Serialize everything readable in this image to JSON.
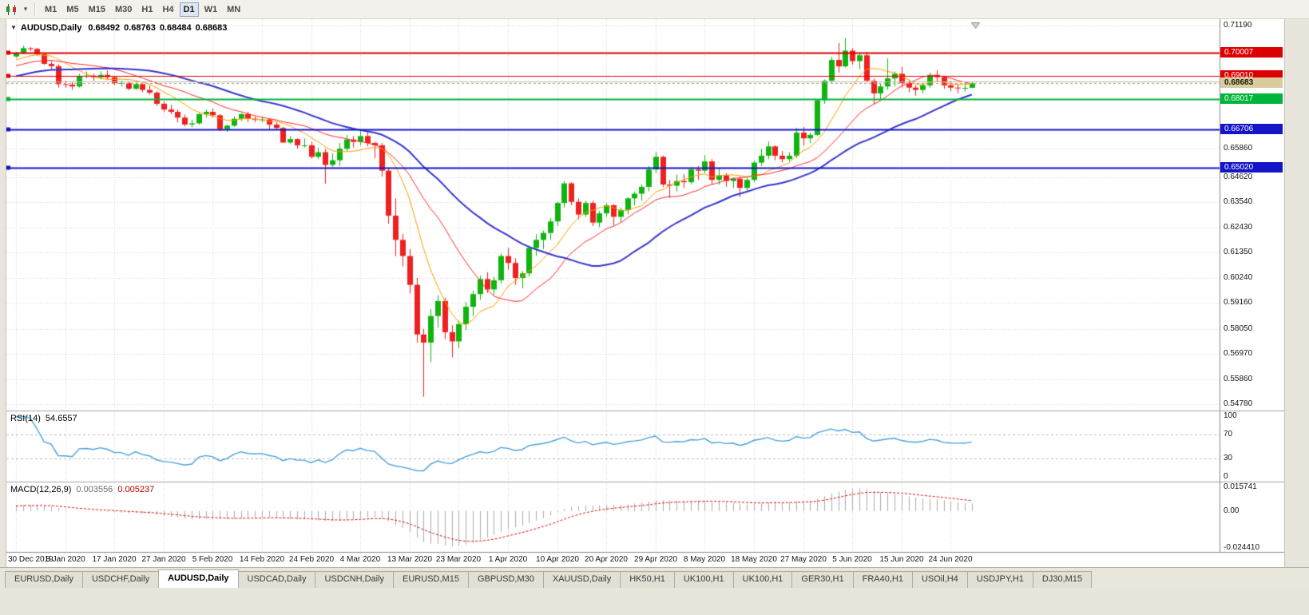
{
  "toolbar": {
    "timeframes": [
      "M1",
      "M5",
      "M15",
      "M30",
      "H1",
      "H4",
      "D1",
      "W1",
      "MN"
    ],
    "active_timeframe": "D1"
  },
  "ohlc": {
    "symbol": "AUDUSD,Daily",
    "open": "0.68492",
    "high": "0.68763",
    "low": "0.68484",
    "close": "0.68683"
  },
  "indicators": {
    "rsi": {
      "name": "RSI(14)",
      "value": "54.6557",
      "period": 14,
      "ticks": [
        {
          "label": "100",
          "value": 100
        },
        {
          "label": "70",
          "value": 70
        },
        {
          "label": "30",
          "value": 30
        },
        {
          "label": "0",
          "value": 0
        }
      ],
      "dashed_levels": [
        70,
        30
      ],
      "line_color": "#4aa1dc"
    },
    "macd": {
      "name": "MACD(12,26,9)",
      "value_main": "0.003556",
      "value_signal": "0.005237",
      "fast": 12,
      "slow": 26,
      "signal": 9,
      "axis_max": 0.015741,
      "axis_min": -0.02441,
      "ticks": [
        {
          "label": "0.015741",
          "value": 0.015741
        },
        {
          "label": "0.00",
          "value": 0
        },
        {
          "label": "-0.024410",
          "value": -0.02441
        }
      ],
      "histogram_color": "#ababab",
      "signal_color": "#e01010"
    }
  },
  "chart_data": {
    "type": "candlestick",
    "symbol": "AUDUSD",
    "timeframe": "Daily",
    "up_color": "#0fb40f",
    "down_color": "#ef2020",
    "price_axis": {
      "min": 0.5478,
      "max": 0.7119,
      "ticks": [
        0.7119,
        0.6586,
        0.6462,
        0.6354,
        0.6243,
        0.6135,
        0.6024,
        0.5916,
        0.5805,
        0.5697,
        0.5586,
        0.5478
      ]
    },
    "x_labels": [
      "30 Dec 2019",
      "8 Jan 2020",
      "17 Jan 2020",
      "27 Jan 2020",
      "5 Feb 2020",
      "14 Feb 2020",
      "24 Feb 2020",
      "4 Mar 2020",
      "13 Mar 2020",
      "23 Mar 2020",
      "1 Apr 2020",
      "10 Apr 2020",
      "20 Apr 2020",
      "29 Apr 2020",
      "8 May 2020",
      "18 May 2020",
      "27 May 2020",
      "5 Jun 2020",
      "15 Jun 2020",
      "24 Jun 2020"
    ],
    "label_step": 7,
    "moving_averages": [
      {
        "name": "ma-fast",
        "period": 8,
        "color": "#ff9c00",
        "width": 1
      },
      {
        "name": "ma-medium",
        "period": 16,
        "color": "#ff2828",
        "width": 1
      },
      {
        "name": "ma-slow",
        "period": 30,
        "color": "#3535cf",
        "width": 2
      }
    ],
    "hlines": [
      {
        "price": 0.70007,
        "label": "0.70007",
        "color": "#dd0000",
        "width": 2
      },
      {
        "price": 0.6901,
        "label": "0.69010",
        "color": "#dd0000",
        "width": 1
      },
      {
        "price": 0.6878,
        "label": "",
        "color": "#bcbcbc",
        "width": 1
      },
      {
        "price": 0.68017,
        "label": "0.68017",
        "color": "#00b43c",
        "width": 2
      },
      {
        "price": 0.66706,
        "label": "0.66706",
        "color": "#1414c8",
        "width": 2
      },
      {
        "price": 0.6502,
        "label": "0.65020",
        "color": "#1414c8",
        "width": 2
      }
    ],
    "current_price": {
      "value": 0.68683,
      "label": "0.68683",
      "badge_bg": "#d9cd9f",
      "badge_fg": "#1a1a00"
    },
    "candles": [
      [
        0.6985,
        0.7005,
        0.6979,
        0.7
      ],
      [
        0.7,
        0.7032,
        0.6996,
        0.7021
      ],
      [
        0.7021,
        0.7026,
        0.7008,
        0.7018
      ],
      [
        0.7018,
        0.7022,
        0.6989,
        0.6995
      ],
      [
        0.6995,
        0.7,
        0.6948,
        0.6953
      ],
      [
        0.6953,
        0.6965,
        0.6925,
        0.6943
      ],
      [
        0.6943,
        0.695,
        0.685,
        0.6865
      ],
      [
        0.6865,
        0.688,
        0.6849,
        0.6863
      ],
      [
        0.6863,
        0.6875,
        0.684,
        0.6855
      ],
      [
        0.6855,
        0.691,
        0.685,
        0.69
      ],
      [
        0.69,
        0.692,
        0.689,
        0.6902
      ],
      [
        0.6902,
        0.691,
        0.688,
        0.6895
      ],
      [
        0.6895,
        0.692,
        0.6885,
        0.6905
      ],
      [
        0.6905,
        0.6925,
        0.6885,
        0.6895
      ],
      [
        0.6895,
        0.69,
        0.686,
        0.687
      ],
      [
        0.687,
        0.688,
        0.6855,
        0.687
      ],
      [
        0.687,
        0.6878,
        0.6838,
        0.6845
      ],
      [
        0.6845,
        0.688,
        0.684,
        0.6865
      ],
      [
        0.6865,
        0.687,
        0.683,
        0.684
      ],
      [
        0.684,
        0.686,
        0.682,
        0.6828
      ],
      [
        0.6828,
        0.6835,
        0.677,
        0.678
      ],
      [
        0.678,
        0.679,
        0.6744,
        0.6755
      ],
      [
        0.6755,
        0.6775,
        0.6735,
        0.6745
      ],
      [
        0.6745,
        0.6755,
        0.67,
        0.672
      ],
      [
        0.672,
        0.6733,
        0.6682,
        0.669
      ],
      [
        0.669,
        0.671,
        0.6678,
        0.6695
      ],
      [
        0.6695,
        0.674,
        0.669,
        0.6735
      ],
      [
        0.6735,
        0.6755,
        0.672,
        0.6745
      ],
      [
        0.6745,
        0.676,
        0.672,
        0.673
      ],
      [
        0.673,
        0.6735,
        0.6662,
        0.667
      ],
      [
        0.667,
        0.669,
        0.6658,
        0.6685
      ],
      [
        0.6685,
        0.6725,
        0.668,
        0.6715
      ],
      [
        0.6715,
        0.674,
        0.6705,
        0.6735
      ],
      [
        0.6735,
        0.6745,
        0.67,
        0.6715
      ],
      [
        0.6715,
        0.6725,
        0.67,
        0.671
      ],
      [
        0.671,
        0.6725,
        0.67,
        0.6712
      ],
      [
        0.6712,
        0.6715,
        0.6665,
        0.669
      ],
      [
        0.669,
        0.67,
        0.6665,
        0.6675
      ],
      [
        0.6675,
        0.668,
        0.661,
        0.6612
      ],
      [
        0.6612,
        0.664,
        0.6605,
        0.6627
      ],
      [
        0.6627,
        0.663,
        0.6585,
        0.66
      ],
      [
        0.66,
        0.663,
        0.659,
        0.66
      ],
      [
        0.66,
        0.6615,
        0.6542,
        0.655
      ],
      [
        0.655,
        0.659,
        0.654,
        0.657
      ],
      [
        0.657,
        0.6585,
        0.6433,
        0.6515
      ],
      [
        0.6515,
        0.6565,
        0.6505,
        0.6535
      ],
      [
        0.6535,
        0.661,
        0.651,
        0.6585
      ],
      [
        0.6585,
        0.6645,
        0.6575,
        0.6625
      ],
      [
        0.6625,
        0.664,
        0.659,
        0.6615
      ],
      [
        0.6615,
        0.667,
        0.66,
        0.664
      ],
      [
        0.664,
        0.666,
        0.6595,
        0.661
      ],
      [
        0.661,
        0.6615,
        0.6545,
        0.66
      ],
      [
        0.66,
        0.661,
        0.6465,
        0.649
      ],
      [
        0.649,
        0.65,
        0.626,
        0.6295
      ],
      [
        0.6295,
        0.637,
        0.612,
        0.619
      ],
      [
        0.619,
        0.6215,
        0.6075,
        0.612
      ],
      [
        0.612,
        0.615,
        0.5958,
        0.5995
      ],
      [
        0.5995,
        0.6025,
        0.5745,
        0.578
      ],
      [
        0.578,
        0.5805,
        0.551,
        0.5745
      ],
      [
        0.5745,
        0.589,
        0.566,
        0.586
      ],
      [
        0.586,
        0.595,
        0.581,
        0.5925
      ],
      [
        0.5925,
        0.594,
        0.576,
        0.579
      ],
      [
        0.579,
        0.582,
        0.568,
        0.575
      ],
      [
        0.575,
        0.584,
        0.572,
        0.5825
      ],
      [
        0.5825,
        0.592,
        0.58,
        0.59
      ],
      [
        0.59,
        0.597,
        0.586,
        0.5955
      ],
      [
        0.5955,
        0.6035,
        0.593,
        0.602
      ],
      [
        0.602,
        0.605,
        0.596,
        0.5975
      ],
      [
        0.5975,
        0.603,
        0.595,
        0.6015
      ],
      [
        0.6015,
        0.613,
        0.6,
        0.612
      ],
      [
        0.612,
        0.6155,
        0.606,
        0.609
      ],
      [
        0.609,
        0.611,
        0.5995,
        0.6025
      ],
      [
        0.6025,
        0.6055,
        0.598,
        0.6045
      ],
      [
        0.6045,
        0.6165,
        0.603,
        0.6155
      ],
      [
        0.6155,
        0.6215,
        0.612,
        0.619
      ],
      [
        0.619,
        0.623,
        0.615,
        0.622
      ],
      [
        0.622,
        0.6285,
        0.619,
        0.627
      ],
      [
        0.627,
        0.6355,
        0.625,
        0.635
      ],
      [
        0.635,
        0.6445,
        0.633,
        0.6435
      ],
      [
        0.6435,
        0.644,
        0.634,
        0.6355
      ],
      [
        0.6355,
        0.637,
        0.628,
        0.63
      ],
      [
        0.63,
        0.636,
        0.629,
        0.635
      ],
      [
        0.635,
        0.636,
        0.625,
        0.6265
      ],
      [
        0.6265,
        0.6315,
        0.6245,
        0.6305
      ],
      [
        0.6305,
        0.635,
        0.629,
        0.634
      ],
      [
        0.634,
        0.6345,
        0.6253,
        0.629
      ],
      [
        0.629,
        0.633,
        0.6265,
        0.632
      ],
      [
        0.632,
        0.6375,
        0.63,
        0.637
      ],
      [
        0.637,
        0.64,
        0.634,
        0.639
      ],
      [
        0.639,
        0.643,
        0.636,
        0.642
      ],
      [
        0.642,
        0.651,
        0.64,
        0.6495
      ],
      [
        0.6495,
        0.657,
        0.648,
        0.655
      ],
      [
        0.655,
        0.6555,
        0.642,
        0.643
      ],
      [
        0.643,
        0.645,
        0.6372,
        0.6425
      ],
      [
        0.6425,
        0.6473,
        0.64,
        0.6445
      ],
      [
        0.6445,
        0.6475,
        0.6415,
        0.644
      ],
      [
        0.644,
        0.6505,
        0.643,
        0.6495
      ],
      [
        0.6495,
        0.651,
        0.645,
        0.649
      ],
      [
        0.649,
        0.6557,
        0.648,
        0.653
      ],
      [
        0.653,
        0.654,
        0.643,
        0.645
      ],
      [
        0.645,
        0.65,
        0.643,
        0.647
      ],
      [
        0.647,
        0.648,
        0.642,
        0.6445
      ],
      [
        0.6445,
        0.646,
        0.6415,
        0.6455
      ],
      [
        0.6455,
        0.6465,
        0.6375,
        0.6415
      ],
      [
        0.6415,
        0.646,
        0.64,
        0.645
      ],
      [
        0.645,
        0.6535,
        0.644,
        0.6525
      ],
      [
        0.6525,
        0.6585,
        0.651,
        0.6555
      ],
      [
        0.6555,
        0.6616,
        0.654,
        0.6595
      ],
      [
        0.6595,
        0.66,
        0.6535,
        0.6555
      ],
      [
        0.6555,
        0.6575,
        0.6525,
        0.654
      ],
      [
        0.654,
        0.657,
        0.653,
        0.6555
      ],
      [
        0.6555,
        0.6675,
        0.6545,
        0.6655
      ],
      [
        0.6655,
        0.668,
        0.6598,
        0.663
      ],
      [
        0.663,
        0.6655,
        0.661,
        0.6645
      ],
      [
        0.6645,
        0.68,
        0.664,
        0.6795
      ],
      [
        0.6795,
        0.6885,
        0.678,
        0.688
      ],
      [
        0.688,
        0.6983,
        0.687,
        0.697
      ],
      [
        0.697,
        0.7043,
        0.6915,
        0.6942
      ],
      [
        0.6942,
        0.7065,
        0.6938,
        0.701
      ],
      [
        0.701,
        0.702,
        0.695,
        0.6965
      ],
      [
        0.6965,
        0.7,
        0.693,
        0.699
      ],
      [
        0.699,
        0.7005,
        0.6872,
        0.688
      ],
      [
        0.688,
        0.689,
        0.6776,
        0.6825
      ],
      [
        0.6825,
        0.687,
        0.68,
        0.6855
      ],
      [
        0.6855,
        0.6977,
        0.684,
        0.689
      ],
      [
        0.689,
        0.692,
        0.6855,
        0.691
      ],
      [
        0.691,
        0.694,
        0.685,
        0.687
      ],
      [
        0.687,
        0.6885,
        0.683,
        0.685
      ],
      [
        0.685,
        0.686,
        0.6815,
        0.684
      ],
      [
        0.684,
        0.687,
        0.6825,
        0.686
      ],
      [
        0.686,
        0.6915,
        0.685,
        0.6905
      ],
      [
        0.6905,
        0.6925,
        0.688,
        0.6895
      ],
      [
        0.6895,
        0.69,
        0.6845,
        0.686
      ],
      [
        0.686,
        0.688,
        0.6835,
        0.685
      ],
      [
        0.685,
        0.6865,
        0.6825,
        0.6848
      ],
      [
        0.6848,
        0.6872,
        0.6833,
        0.6849
      ],
      [
        0.68492,
        0.68763,
        0.68484,
        0.68683
      ]
    ]
  },
  "tabs": {
    "active_index": 2,
    "items": [
      "EURUSD,Daily",
      "USDCHF,Daily",
      "AUDUSD,Daily",
      "USDCAD,Daily",
      "USDCNH,Daily",
      "EURUSD,M15",
      "GBPUSD,M30",
      "XAUUSD,Daily",
      "HK50,H1",
      "UK100,H1",
      "UK100,H1",
      "GER30,H1",
      "FRA40,H1",
      "USOil,H4",
      "USDJPY,H1",
      "DJ30,M15"
    ]
  }
}
